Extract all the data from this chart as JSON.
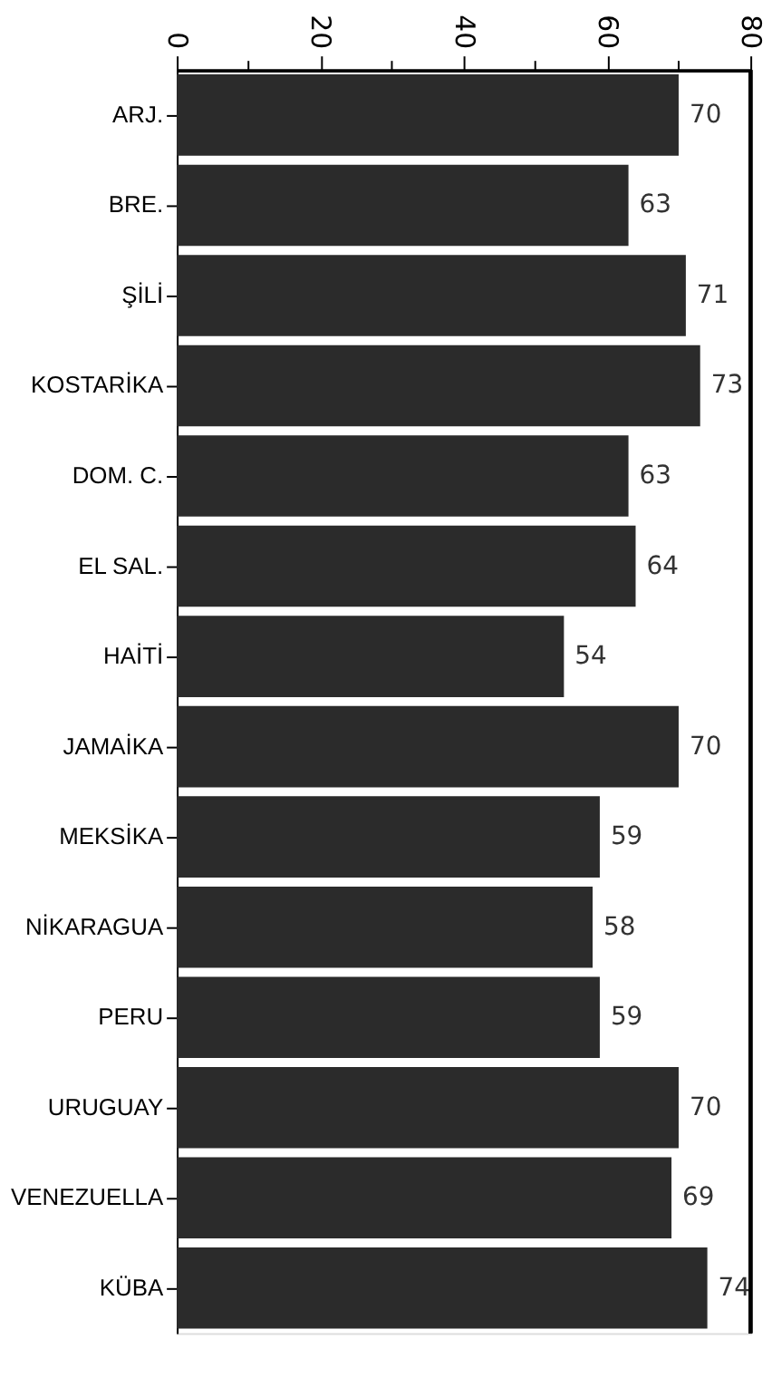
{
  "chart_data": {
    "type": "bar",
    "orientation": "horizontal",
    "categories": [
      "ARJ.",
      "BRE.",
      "ŞİLİ",
      "KOSTARİKA",
      "DOM. C.",
      "EL SAL.",
      "HAİTİ",
      "JAMAİKA",
      "MEKSİKA",
      "NİKARAGUA",
      "PERU",
      "URUGUAY",
      "VENEZUELLA",
      "KÜBA"
    ],
    "values": [
      70,
      63,
      71,
      73,
      63,
      64,
      54,
      70,
      59,
      58,
      59,
      70,
      69,
      74
    ],
    "color": "#2b2b2b",
    "xlim": [
      0,
      80
    ],
    "xticks": [
      0,
      {
        "value": 10,
        "label": null
      },
      20,
      {
        "value": 30,
        "label": null
      },
      40,
      {
        "value": 50,
        "label": null
      },
      60,
      {
        "value": 70,
        "label": null
      },
      80
    ],
    "data_labels": true,
    "grid": false
  }
}
